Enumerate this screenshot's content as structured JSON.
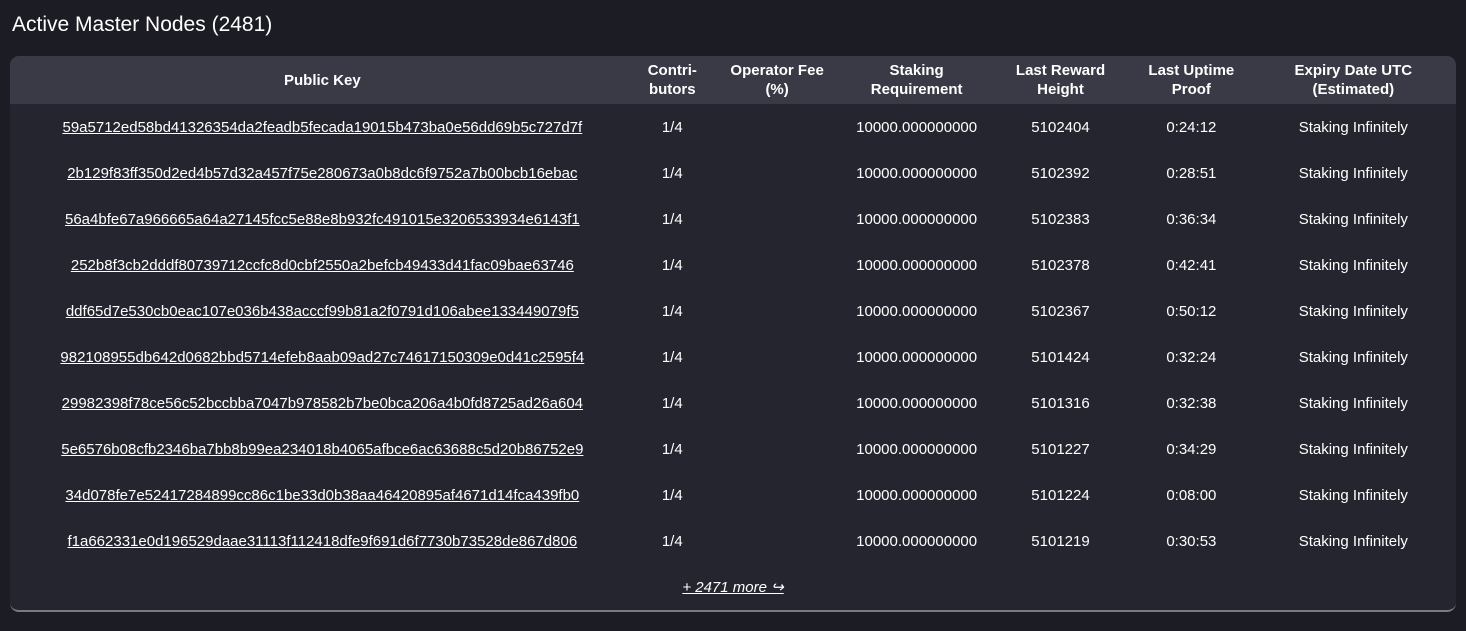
{
  "title": "Active Master Nodes (2481)",
  "colors": {
    "page_bg": "#1c1c24",
    "card_bg": "#25252f",
    "header_bg": "#3a3a47",
    "text": "#ffffff",
    "card_bottom_border": "#7a7a82"
  },
  "table": {
    "headers": [
      "Public Key",
      "Contri-\nbutors",
      "Operator Fee\n(%)",
      "Staking\nRequirement",
      "Last Reward\nHeight",
      "Last Uptime\nProof",
      "Expiry Date UTC\n(Estimated)"
    ],
    "rows": [
      {
        "public_key": "59a5712ed58bd41326354da2feadb5fecada19015b473ba0e56dd69b5c727d7f",
        "contributors": "1/4",
        "operator_fee": "",
        "staking_requirement": "10000.000000000",
        "last_reward_height": "5102404",
        "last_uptime_proof": "0:24:12",
        "expiry": "Staking Infinitely"
      },
      {
        "public_key": "2b129f83ff350d2ed4b57d32a457f75e280673a0b8dc6f9752a7b00bcb16ebac",
        "contributors": "1/4",
        "operator_fee": "",
        "staking_requirement": "10000.000000000",
        "last_reward_height": "5102392",
        "last_uptime_proof": "0:28:51",
        "expiry": "Staking Infinitely"
      },
      {
        "public_key": "56a4bfe67a966665a64a27145fcc5e88e8b932fc491015e3206533934e6143f1",
        "contributors": "1/4",
        "operator_fee": "",
        "staking_requirement": "10000.000000000",
        "last_reward_height": "5102383",
        "last_uptime_proof": "0:36:34",
        "expiry": "Staking Infinitely"
      },
      {
        "public_key": "252b8f3cb2dddf80739712ccfc8d0cbf2550a2befcb49433d41fac09bae63746",
        "contributors": "1/4",
        "operator_fee": "",
        "staking_requirement": "10000.000000000",
        "last_reward_height": "5102378",
        "last_uptime_proof": "0:42:41",
        "expiry": "Staking Infinitely"
      },
      {
        "public_key": "ddf65d7e530cb0eac107e036b438acccf99b81a2f0791d106abee133449079f5",
        "contributors": "1/4",
        "operator_fee": "",
        "staking_requirement": "10000.000000000",
        "last_reward_height": "5102367",
        "last_uptime_proof": "0:50:12",
        "expiry": "Staking Infinitely"
      },
      {
        "public_key": "982108955db642d0682bbd5714efeb8aab09ad27c74617150309e0d41c2595f4",
        "contributors": "1/4",
        "operator_fee": "",
        "staking_requirement": "10000.000000000",
        "last_reward_height": "5101424",
        "last_uptime_proof": "0:32:24",
        "expiry": "Staking Infinitely"
      },
      {
        "public_key": "29982398f78ce56c52bccbba7047b978582b7be0bca206a4b0fd8725ad26a604",
        "contributors": "1/4",
        "operator_fee": "",
        "staking_requirement": "10000.000000000",
        "last_reward_height": "5101316",
        "last_uptime_proof": "0:32:38",
        "expiry": "Staking Infinitely"
      },
      {
        "public_key": "5e6576b08cfb2346ba7bb8b99ea234018b4065afbce6ac63688c5d20b86752e9",
        "contributors": "1/4",
        "operator_fee": "",
        "staking_requirement": "10000.000000000",
        "last_reward_height": "5101227",
        "last_uptime_proof": "0:34:29",
        "expiry": "Staking Infinitely"
      },
      {
        "public_key": "34d078fe7e52417284899cc86c1be33d0b38aa46420895af4671d14fca439fb0",
        "contributors": "1/4",
        "operator_fee": "",
        "staking_requirement": "10000.000000000",
        "last_reward_height": "5101224",
        "last_uptime_proof": "0:08:00",
        "expiry": "Staking Infinitely"
      },
      {
        "public_key": "f1a662331e0d196529daae31113f112418dfe9f691d6f7730b73528de867d806",
        "contributors": "1/4",
        "operator_fee": "",
        "staking_requirement": "10000.000000000",
        "last_reward_height": "5101219",
        "last_uptime_proof": "0:30:53",
        "expiry": "Staking Infinitely"
      }
    ],
    "more_label": "+ 2471 more ↪"
  }
}
